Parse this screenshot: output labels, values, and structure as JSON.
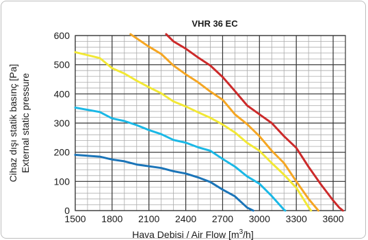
{
  "chart_data": {
    "type": "line",
    "title": "VHR 36 EC",
    "xlabel_main": "Hava Debisi / Air Flow [m",
    "xlabel_sup": "3",
    "xlabel_end": "/h]",
    "ylabel_line1": "Cihaz dışı statik basınç [Pa]",
    "ylabel_line2": "External static pressure",
    "xlim": [
      1500,
      3700
    ],
    "ylim": [
      0,
      600
    ],
    "x_ticks": [
      1500,
      1800,
      2100,
      2400,
      2700,
      3000,
      3300,
      3600
    ],
    "y_ticks": [
      0,
      100,
      200,
      300,
      400,
      500,
      600
    ],
    "x_minor_step": 100,
    "y_minor_step": 20,
    "grid": true,
    "series": [
      {
        "color": "#1a74b8",
        "points": [
          [
            1500,
            191
          ],
          [
            1700,
            185
          ],
          [
            1800,
            175
          ],
          [
            1900,
            169
          ],
          [
            2000,
            158
          ],
          [
            2200,
            146
          ],
          [
            2300,
            135
          ],
          [
            2400,
            127
          ],
          [
            2500,
            114
          ],
          [
            2600,
            98
          ],
          [
            2700,
            72
          ],
          [
            2800,
            49
          ],
          [
            2900,
            10
          ],
          [
            2950,
            0
          ]
        ]
      },
      {
        "color": "#1ab8e6",
        "points": [
          [
            1500,
            353
          ],
          [
            1700,
            338
          ],
          [
            1800,
            316
          ],
          [
            1900,
            307
          ],
          [
            2000,
            293
          ],
          [
            2100,
            276
          ],
          [
            2200,
            262
          ],
          [
            2300,
            242
          ],
          [
            2400,
            233
          ],
          [
            2500,
            217
          ],
          [
            2600,
            205
          ],
          [
            2700,
            177
          ],
          [
            2800,
            151
          ],
          [
            2900,
            117
          ],
          [
            3000,
            92
          ],
          [
            3100,
            50
          ],
          [
            3200,
            3
          ],
          [
            3210,
            0
          ]
        ]
      },
      {
        "color": "#f2e835",
        "points": [
          [
            1500,
            543
          ],
          [
            1700,
            523
          ],
          [
            1800,
            488
          ],
          [
            1900,
            470
          ],
          [
            2000,
            445
          ],
          [
            2100,
            423
          ],
          [
            2200,
            402
          ],
          [
            2300,
            374
          ],
          [
            2400,
            357
          ],
          [
            2500,
            337
          ],
          [
            2600,
            318
          ],
          [
            2700,
            295
          ],
          [
            2800,
            268
          ],
          [
            2900,
            232
          ],
          [
            3000,
            205
          ],
          [
            3100,
            163
          ],
          [
            3200,
            123
          ],
          [
            3300,
            78
          ],
          [
            3400,
            12
          ],
          [
            3420,
            0
          ]
        ]
      },
      {
        "color": "#f5a623",
        "points": [
          [
            1950,
            605
          ],
          [
            2100,
            562
          ],
          [
            2200,
            537
          ],
          [
            2300,
            497
          ],
          [
            2400,
            467
          ],
          [
            2500,
            440
          ],
          [
            2600,
            408
          ],
          [
            2700,
            380
          ],
          [
            2800,
            330
          ],
          [
            2900,
            296
          ],
          [
            3000,
            255
          ],
          [
            3100,
            205
          ],
          [
            3200,
            163
          ],
          [
            3300,
            100
          ],
          [
            3400,
            40
          ],
          [
            3450,
            15
          ],
          [
            3480,
            0
          ]
        ]
      },
      {
        "color": "#cc2a2a",
        "points": [
          [
            2240,
            605
          ],
          [
            2300,
            580
          ],
          [
            2400,
            555
          ],
          [
            2500,
            525
          ],
          [
            2600,
            497
          ],
          [
            2700,
            458
          ],
          [
            2800,
            410
          ],
          [
            2900,
            360
          ],
          [
            3000,
            330
          ],
          [
            3100,
            300
          ],
          [
            3200,
            255
          ],
          [
            3300,
            215
          ],
          [
            3400,
            150
          ],
          [
            3500,
            90
          ],
          [
            3600,
            35
          ],
          [
            3650,
            10
          ],
          [
            3680,
            0
          ]
        ]
      }
    ]
  }
}
